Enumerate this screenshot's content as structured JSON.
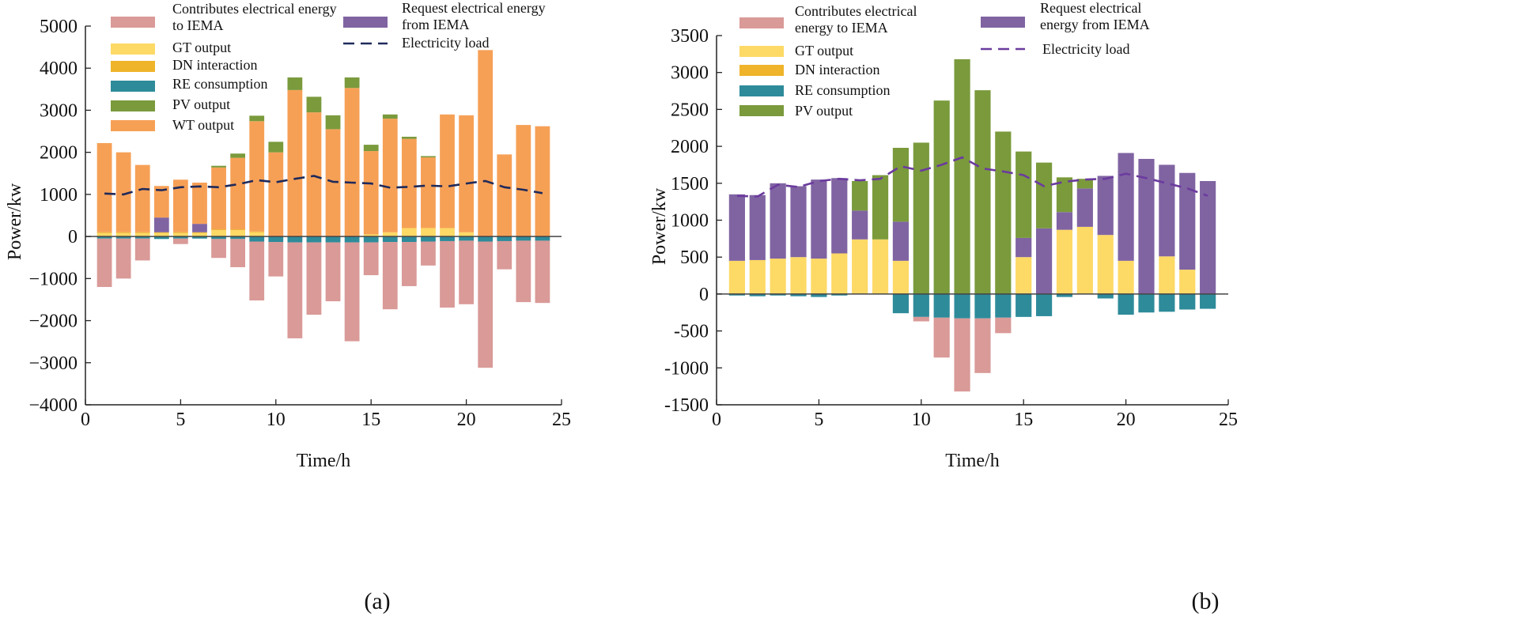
{
  "figure": {
    "caption_a": "(a)",
    "caption_b": "(b)"
  },
  "colors": {
    "contribute": "#D99A98",
    "gt": "#FDD966",
    "dn": "#EFB42A",
    "re": "#2E8B9A",
    "pv": "#7A9A3C",
    "wt": "#F6A056",
    "request": "#8064A2",
    "load_a": "#1F2A5A",
    "load_b": "#6B3B9E"
  },
  "chart_data": [
    {
      "panel": "(a)",
      "type": "bar",
      "stacked": true,
      "xlabel": "Time/h",
      "ylabel": "Power/kw",
      "xlim": [
        0,
        25
      ],
      "ylim": [
        -4000,
        5000
      ],
      "xticks": [
        "0",
        "5",
        "10",
        "15",
        "20",
        "25"
      ],
      "yticks": [
        "5000",
        "4000",
        "3000",
        "2000",
        "1000",
        "0",
        "−1000",
        "−2000",
        "−3000",
        "−4000"
      ],
      "x": [
        1,
        2,
        3,
        4,
        5,
        6,
        7,
        8,
        9,
        10,
        11,
        12,
        13,
        14,
        15,
        16,
        17,
        18,
        19,
        20,
        21,
        22,
        23,
        24
      ],
      "series": [
        {
          "key": "gt",
          "name": "GT output",
          "color_key": "gt",
          "stack": "positive",
          "values": [
            80,
            80,
            80,
            80,
            80,
            80,
            150,
            150,
            100,
            0,
            0,
            0,
            0,
            0,
            50,
            100,
            200,
            200,
            200,
            100,
            0,
            0,
            0,
            0
          ]
        },
        {
          "key": "dn",
          "name": "DN interaction",
          "color_key": "dn",
          "stack": "positive",
          "values": [
            20,
            20,
            20,
            20,
            20,
            20,
            20,
            20,
            20,
            0,
            0,
            0,
            0,
            0,
            0,
            0,
            0,
            0,
            0,
            0,
            0,
            0,
            0,
            0
          ]
        },
        {
          "key": "request",
          "name": "Request electrical energy from IEMA",
          "color_key": "request",
          "stack": "positive",
          "values": [
            0,
            0,
            0,
            350,
            0,
            200,
            0,
            0,
            0,
            0,
            0,
            0,
            0,
            0,
            0,
            0,
            0,
            0,
            0,
            0,
            0,
            0,
            0,
            0
          ]
        },
        {
          "key": "wt",
          "name": "WT output",
          "color_key": "wt",
          "stack": "positive",
          "values": [
            2120,
            1900,
            1600,
            750,
            1250,
            980,
            1470,
            1700,
            2620,
            2000,
            3480,
            2950,
            2550,
            3530,
            1980,
            2700,
            2120,
            1680,
            2700,
            2780,
            4430,
            1950,
            2650,
            2620
          ]
        },
        {
          "key": "pv",
          "name": "PV output",
          "color_key": "pv",
          "stack": "positive",
          "values": [
            0,
            0,
            0,
            0,
            0,
            0,
            40,
            100,
            130,
            250,
            300,
            370,
            330,
            250,
            150,
            100,
            50,
            30,
            0,
            0,
            0,
            0,
            0,
            0
          ]
        },
        {
          "key": "re",
          "name": "RE consumption",
          "color_key": "re",
          "stack": "negative",
          "values": [
            -50,
            -50,
            -50,
            -60,
            -50,
            -50,
            -60,
            -60,
            -120,
            -130,
            -140,
            -140,
            -140,
            -140,
            -140,
            -130,
            -130,
            -120,
            -110,
            -100,
            -120,
            -110,
            -100,
            -100
          ]
        },
        {
          "key": "contribute",
          "name": "Contributes electrical energy to IEMA",
          "color_key": "contribute",
          "stack": "negative",
          "values": [
            -1150,
            -950,
            -520,
            0,
            -130,
            0,
            -450,
            -670,
            -1400,
            -820,
            -2280,
            -1720,
            -1400,
            -2350,
            -780,
            -1600,
            -1050,
            -570,
            -1580,
            -1510,
            -3000,
            -670,
            -1460,
            -1480
          ]
        }
      ],
      "load": {
        "name": "Electricity load",
        "color_key": "load_a",
        "dash": "14 8",
        "values": [
          1020,
          1000,
          1130,
          1100,
          1170,
          1190,
          1170,
          1240,
          1340,
          1290,
          1370,
          1440,
          1300,
          1280,
          1260,
          1160,
          1180,
          1210,
          1190,
          1260,
          1320,
          1170,
          1110,
          1030
        ]
      },
      "legend": [
        {
          "key": "contribute",
          "label": "Contributes electrical energy to IEMA",
          "lines": [
            "Contributes electrical energy",
            "to IEMA"
          ]
        },
        {
          "key": "gt",
          "label": "GT output",
          "lines": [
            "GT output"
          ]
        },
        {
          "key": "dn",
          "label": "DN interaction",
          "lines": [
            "DN interaction"
          ]
        },
        {
          "key": "re",
          "label": "RE consumption",
          "lines": [
            "RE consumption"
          ]
        },
        {
          "key": "pv",
          "label": "PV output",
          "lines": [
            "PV output"
          ]
        },
        {
          "key": "wt",
          "label": "WT output",
          "lines": [
            "WT output"
          ]
        },
        {
          "key": "request",
          "label": "Request electrical energy from IEMA",
          "lines": [
            "Request electrical energy",
            "from IEMA"
          ]
        },
        {
          "key": "load",
          "label": "Electricity load",
          "lines": [
            "Electricity load"
          ]
        }
      ]
    },
    {
      "panel": "(b)",
      "type": "bar",
      "stacked": true,
      "xlabel": "Time/h",
      "ylabel": "Power/kw",
      "xlim": [
        0,
        25
      ],
      "ylim": [
        -1500,
        3500
      ],
      "xticks": [
        "0",
        "5",
        "10",
        "15",
        "20",
        "25"
      ],
      "yticks": [
        "3500",
        "3000",
        "2500",
        "2000",
        "1500",
        "1000",
        "500",
        "0",
        "-500",
        "-1000",
        "-1500"
      ],
      "x": [
        1,
        2,
        3,
        4,
        5,
        6,
        7,
        8,
        9,
        10,
        11,
        12,
        13,
        14,
        15,
        16,
        17,
        18,
        19,
        20,
        21,
        22,
        23,
        24
      ],
      "series": [
        {
          "key": "gt",
          "name": "GT output",
          "color_key": "gt",
          "stack": "positive",
          "values": [
            450,
            460,
            480,
            500,
            480,
            550,
            740,
            740,
            450,
            0,
            0,
            0,
            0,
            0,
            500,
            0,
            870,
            910,
            800,
            450,
            0,
            510,
            330,
            0
          ]
        },
        {
          "key": "dn",
          "name": "DN interaction",
          "color_key": "dn",
          "stack": "positive",
          "values": [
            0,
            0,
            0,
            0,
            0,
            0,
            0,
            0,
            0,
            0,
            0,
            0,
            0,
            0,
            0,
            0,
            0,
            0,
            0,
            0,
            0,
            0,
            0,
            0
          ]
        },
        {
          "key": "request",
          "name": "Request electrical energy from IEMA",
          "color_key": "request",
          "stack": "positive",
          "values": [
            900,
            880,
            1020,
            960,
            1070,
            1020,
            390,
            0,
            530,
            0,
            0,
            0,
            0,
            0,
            260,
            890,
            240,
            520,
            800,
            1460,
            1830,
            1240,
            1310,
            1530
          ]
        },
        {
          "key": "pv",
          "name": "PV output",
          "color_key": "pv",
          "stack": "positive",
          "values": [
            0,
            0,
            0,
            0,
            0,
            0,
            400,
            870,
            1000,
            2050,
            2620,
            3180,
            2760,
            2200,
            1170,
            890,
            470,
            130,
            0,
            0,
            0,
            0,
            0,
            0
          ]
        },
        {
          "key": "re",
          "name": "RE consumption",
          "color_key": "re",
          "stack": "negative",
          "values": [
            -20,
            -30,
            -20,
            -30,
            -40,
            -20,
            0,
            0,
            -260,
            -310,
            -320,
            -330,
            -330,
            -320,
            -310,
            -300,
            -40,
            0,
            -60,
            -280,
            -250,
            -240,
            -210,
            -200
          ]
        },
        {
          "key": "contribute",
          "name": "Contributes electrical energy to IEMA",
          "color_key": "contribute",
          "stack": "negative",
          "values": [
            0,
            0,
            0,
            0,
            0,
            0,
            0,
            0,
            0,
            -60,
            -540,
            -990,
            -740,
            -210,
            0,
            0,
            0,
            0,
            0,
            0,
            0,
            0,
            0,
            0
          ]
        }
      ],
      "load": {
        "name": "Electricity load",
        "color_key": "load_b",
        "dash": "14 8",
        "values": [
          1330,
          1320,
          1480,
          1450,
          1530,
          1560,
          1540,
          1560,
          1730,
          1670,
          1750,
          1850,
          1700,
          1660,
          1610,
          1460,
          1520,
          1550,
          1560,
          1630,
          1570,
          1500,
          1430,
          1330
        ]
      },
      "legend": [
        {
          "key": "contribute",
          "label": "Contributes electrical energy to IEMA",
          "lines": [
            "Contributes electrical",
            "energy to IEMA"
          ]
        },
        {
          "key": "gt",
          "label": "GT output",
          "lines": [
            "GT output"
          ]
        },
        {
          "key": "dn",
          "label": "DN interaction",
          "lines": [
            "DN interaction"
          ]
        },
        {
          "key": "re",
          "label": "RE consumption",
          "lines": [
            "RE consumption"
          ]
        },
        {
          "key": "pv",
          "label": "PV output",
          "lines": [
            "PV output"
          ]
        },
        {
          "key": "request",
          "label": "Request electrical energy from IEMA",
          "lines": [
            "Request electrical",
            "energy from IEMA"
          ]
        },
        {
          "key": "load",
          "label": "Electricity load",
          "lines": [
            "Electricity load"
          ]
        }
      ]
    }
  ]
}
